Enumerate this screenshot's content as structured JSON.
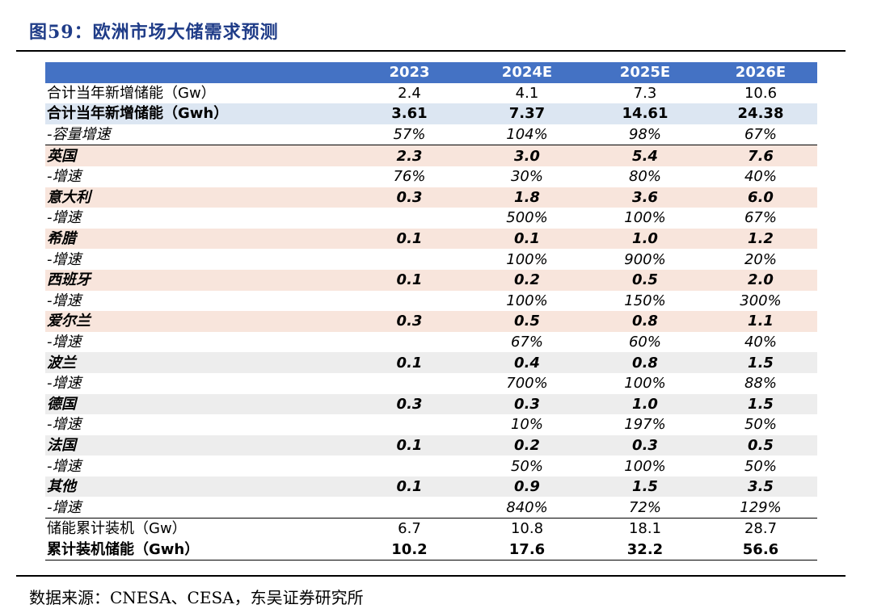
{
  "title": "图59：欧洲市场大储需求预测",
  "source": "数据来源：CNESA、CESA，东吴证券研究所",
  "header": [
    "",
    "2023",
    "2024E",
    "2025E",
    "2026E"
  ],
  "rows": [
    {
      "label": "合计当年新增储能（Gw）",
      "values": [
        "2.4",
        "4.1",
        "7.3",
        "10.6"
      ]
    },
    {
      "label": "合计当年新增储能（Gwh）",
      "values": [
        "3.61",
        "7.37",
        "14.61",
        "24.38"
      ]
    },
    {
      "label": "-容量增速",
      "values": [
        "57%",
        "104%",
        "98%",
        "67%"
      ]
    },
    {
      "label": "英国",
      "values": [
        "2.3",
        "3.0",
        "5.4",
        "7.6"
      ]
    },
    {
      "label": "-增速",
      "values": [
        "76%",
        "30%",
        "80%",
        "40%"
      ]
    },
    {
      "label": "意大利",
      "values": [
        "0.3",
        "1.8",
        "3.6",
        "6.0"
      ]
    },
    {
      "label": "-增速",
      "values": [
        "",
        "500%",
        "100%",
        "67%"
      ]
    },
    {
      "label": "希腊",
      "values": [
        "0.1",
        "0.1",
        "1.0",
        "1.2"
      ]
    },
    {
      "label": "-增速",
      "values": [
        "",
        "100%",
        "900%",
        "20%"
      ]
    },
    {
      "label": "西班牙",
      "values": [
        "0.1",
        "0.2",
        "0.5",
        "2.0"
      ]
    },
    {
      "label": "-增速",
      "values": [
        "",
        "100%",
        "150%",
        "300%"
      ]
    },
    {
      "label": "爱尔兰",
      "values": [
        "0.3",
        "0.5",
        "0.8",
        "1.1"
      ]
    },
    {
      "label": "-增速",
      "values": [
        "",
        "67%",
        "60%",
        "40%"
      ]
    },
    {
      "label": "波兰",
      "values": [
        "0.1",
        "0.4",
        "0.8",
        "1.5"
      ]
    },
    {
      "label": "-增速",
      "values": [
        "",
        "700%",
        "100%",
        "88%"
      ]
    },
    {
      "label": "德国",
      "values": [
        "0.3",
        "0.3",
        "1.0",
        "1.5"
      ]
    },
    {
      "label": "-增速",
      "values": [
        "",
        "10%",
        "197%",
        "50%"
      ]
    },
    {
      "label": "法国",
      "values": [
        "0.1",
        "0.2",
        "0.3",
        "0.5"
      ]
    },
    {
      "label": "-增速",
      "values": [
        "",
        "50%",
        "100%",
        "50%"
      ]
    },
    {
      "label": "其他",
      "values": [
        "0.1",
        "0.9",
        "1.5",
        "3.5"
      ]
    },
    {
      "label": "-增速",
      "values": [
        "",
        "840%",
        "72%",
        "129%"
      ]
    },
    {
      "label": "储能累计装机（Gw）",
      "values": [
        "6.7",
        "10.8",
        "18.1",
        "28.7"
      ]
    },
    {
      "label": "累计装机储能（Gwh）",
      "values": [
        "10.2",
        "17.6",
        "32.2",
        "56.6"
      ]
    }
  ]
}
